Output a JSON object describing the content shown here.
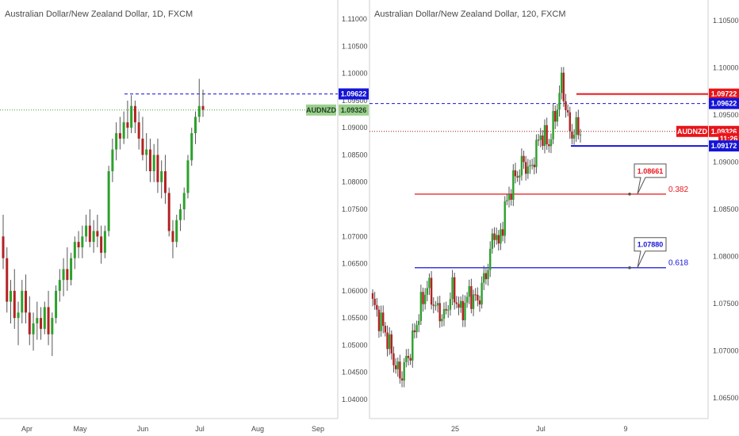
{
  "colors": {
    "up": "#2ca02c",
    "down": "#b22222",
    "wick": "#555555",
    "red": "#e8141a",
    "blue": "#1515d8",
    "green_level": "#3da33d",
    "axis_line": "#cfcfcf",
    "pale_green_badge": "#9dd08f"
  },
  "chart_data": [
    {
      "type": "candlestick",
      "title": "Australian Dollar/New Zealand Dollar, 1D, FXCM",
      "x_tick_labels": [
        "Apr",
        "May",
        "Jun",
        "Jul",
        "Aug",
        "Sep"
      ],
      "y_tick_labels": [
        "1.11000",
        "1.10500",
        "1.10000",
        "1.09500",
        "1.09000",
        "1.08500",
        "1.08000",
        "1.07500",
        "1.07000",
        "1.06500",
        "1.06000",
        "1.05500",
        "1.05000",
        "1.04500",
        "1.04000"
      ],
      "ylim": [
        1.0365,
        1.1135
      ],
      "grid": false,
      "levels": [
        {
          "name": "resistance",
          "value": 1.09622,
          "style": "dashed",
          "color": "blue"
        },
        {
          "name": "current",
          "value": 1.09326,
          "style": "dotted",
          "color": "green"
        }
      ],
      "badges": [
        {
          "label": "1.09622",
          "value": 1.09622,
          "color": "blue"
        },
        {
          "label": "AUDNZD",
          "value": 1.09326,
          "color": "pale-green"
        },
        {
          "label": "1.09326",
          "value": 1.09326,
          "color": "pale-green"
        }
      ],
      "ohlc": [
        [
          1.07,
          1.074,
          1.064,
          1.066
        ],
        [
          1.066,
          1.068,
          1.056,
          1.058
        ],
        [
          1.058,
          1.062,
          1.054,
          1.06
        ],
        [
          1.06,
          1.064,
          1.053,
          1.055
        ],
        [
          1.055,
          1.058,
          1.05,
          1.056
        ],
        [
          1.056,
          1.062,
          1.054,
          1.06
        ],
        [
          1.06,
          1.063,
          1.054,
          1.056
        ],
        [
          1.056,
          1.059,
          1.05,
          1.052
        ],
        [
          1.052,
          1.056,
          1.049,
          1.054
        ],
        [
          1.054,
          1.058,
          1.051,
          1.055
        ],
        [
          1.055,
          1.057,
          1.051,
          1.053
        ],
        [
          1.053,
          1.058,
          1.052,
          1.057
        ],
        [
          1.057,
          1.06,
          1.05,
          1.052
        ],
        [
          1.052,
          1.056,
          1.048,
          1.055
        ],
        [
          1.055,
          1.061,
          1.054,
          1.06
        ],
        [
          1.06,
          1.064,
          1.058,
          1.062
        ],
        [
          1.062,
          1.066,
          1.059,
          1.064
        ],
        [
          1.064,
          1.068,
          1.06,
          1.062
        ],
        [
          1.062,
          1.067,
          1.061,
          1.066
        ],
        [
          1.066,
          1.07,
          1.064,
          1.069
        ],
        [
          1.069,
          1.071,
          1.066,
          1.068
        ],
        [
          1.068,
          1.072,
          1.066,
          1.07
        ],
        [
          1.07,
          1.074,
          1.069,
          1.072
        ],
        [
          1.072,
          1.075,
          1.068,
          1.069
        ],
        [
          1.069,
          1.073,
          1.067,
          1.071
        ],
        [
          1.071,
          1.074,
          1.068,
          1.07
        ],
        [
          1.07,
          1.072,
          1.065,
          1.067
        ],
        [
          1.067,
          1.072,
          1.066,
          1.071
        ],
        [
          1.071,
          1.083,
          1.07,
          1.082
        ],
        [
          1.082,
          1.088,
          1.08,
          1.086
        ],
        [
          1.086,
          1.091,
          1.084,
          1.089
        ],
        [
          1.089,
          1.092,
          1.086,
          1.088
        ],
        [
          1.088,
          1.093,
          1.087,
          1.091
        ],
        [
          1.091,
          1.095,
          1.088,
          1.09
        ],
        [
          1.09,
          1.096,
          1.089,
          1.094
        ],
        [
          1.094,
          1.095,
          1.089,
          1.091
        ],
        [
          1.091,
          1.093,
          1.086,
          1.088
        ],
        [
          1.088,
          1.092,
          1.084,
          1.085
        ],
        [
          1.085,
          1.089,
          1.082,
          1.086
        ],
        [
          1.086,
          1.088,
          1.08,
          1.082
        ],
        [
          1.082,
          1.087,
          1.08,
          1.085
        ],
        [
          1.085,
          1.088,
          1.078,
          1.08
        ],
        [
          1.08,
          1.084,
          1.077,
          1.082
        ],
        [
          1.082,
          1.085,
          1.076,
          1.078
        ],
        [
          1.078,
          1.079,
          1.07,
          1.071
        ],
        [
          1.071,
          1.073,
          1.066,
          1.069
        ],
        [
          1.069,
          1.074,
          1.068,
          1.073
        ],
        [
          1.073,
          1.076,
          1.071,
          1.075
        ],
        [
          1.075,
          1.079,
          1.073,
          1.078
        ],
        [
          1.078,
          1.085,
          1.077,
          1.084
        ],
        [
          1.084,
          1.09,
          1.083,
          1.089
        ],
        [
          1.089,
          1.093,
          1.087,
          1.092
        ],
        [
          1.092,
          1.099,
          1.091,
          1.094
        ],
        [
          1.094,
          1.097,
          1.092,
          1.0933
        ]
      ]
    },
    {
      "type": "candlestick",
      "title": "Australian Dollar/New Zealand Dollar, 120, FXCM",
      "x_tick_labels": [
        "25",
        "Jul",
        "9"
      ],
      "y_tick_labels": [
        "1.10500",
        "1.10000",
        "1.09500",
        "1.09000",
        "1.08500",
        "1.08000",
        "1.07500",
        "1.07000",
        "1.06500"
      ],
      "ylim": [
        1.0628,
        1.1072
      ],
      "grid": false,
      "levels": [
        {
          "name": "resistance-top",
          "value": 1.09722,
          "style": "solid",
          "color": "red"
        },
        {
          "name": "resistance",
          "value": 1.09622,
          "style": "dashed",
          "color": "blue"
        },
        {
          "name": "current",
          "value": 1.09326,
          "style": "dotted",
          "color": "red"
        },
        {
          "name": "support",
          "value": 1.09172,
          "style": "solid",
          "color": "blue"
        },
        {
          "name": "fib-382",
          "value": 1.08661,
          "style": "solid",
          "color": "red"
        },
        {
          "name": "fib-618",
          "value": 1.0788,
          "style": "solid",
          "color": "blue"
        }
      ],
      "badges": [
        {
          "label": "1.09722",
          "value": 1.09722,
          "color": "red"
        },
        {
          "label": "1.09622",
          "value": 1.09622,
          "color": "blue"
        },
        {
          "label": "AUDNZD",
          "value": 1.09326,
          "color": "red"
        },
        {
          "label": "1.09326",
          "value": 1.09326,
          "color": "red"
        },
        {
          "label": "11:26",
          "value": 1.0925,
          "color": "red"
        },
        {
          "label": "1.09172",
          "value": 1.09172,
          "color": "blue"
        }
      ],
      "callouts": [
        {
          "price_label": "1.08661",
          "fib_label": "0.382",
          "value": 1.08661,
          "color": "red"
        },
        {
          "price_label": "1.07880",
          "fib_label": "0.618",
          "value": 1.0788,
          "color": "blue"
        }
      ],
      "waypoints": [
        [
          0,
          1.075
        ],
        [
          6,
          1.072
        ],
        [
          10,
          1.069
        ],
        [
          13,
          1.0672
        ],
        [
          18,
          1.07
        ],
        [
          22,
          1.074
        ],
        [
          26,
          1.077
        ],
        [
          30,
          1.0745
        ],
        [
          34,
          1.0735
        ],
        [
          38,
          1.0765
        ],
        [
          42,
          1.074
        ],
        [
          46,
          1.076
        ],
        [
          50,
          1.0752
        ],
        [
          55,
          1.079
        ],
        [
          58,
          1.083
        ],
        [
          60,
          1.081
        ],
        [
          63,
          1.085
        ],
        [
          67,
          1.088
        ],
        [
          72,
          1.09
        ],
        [
          75,
          1.089
        ],
        [
          80,
          1.093
        ],
        [
          84,
          1.092
        ],
        [
          88,
          1.096
        ],
        [
          90,
          1.0985
        ],
        [
          92,
          1.096
        ],
        [
          94,
          1.093
        ],
        [
          97,
          1.0935
        ],
        [
          99,
          1.0933
        ]
      ]
    }
  ]
}
